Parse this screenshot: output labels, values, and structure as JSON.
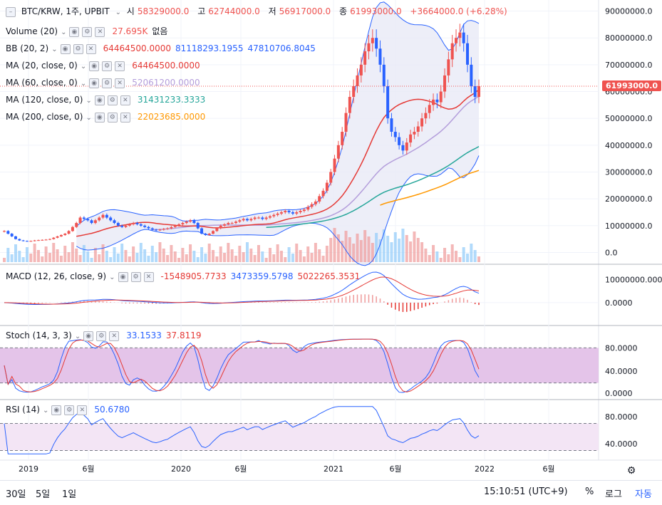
{
  "header": {
    "symbol": "BTC/KRW, 1주, UPBIT",
    "open_label": "시",
    "open": "58329000.0",
    "high_label": "고",
    "high": "62744000.0",
    "low_label": "저",
    "low": "56917000.0",
    "close_label": "종",
    "close": "61993000.0",
    "change": "+3664000.0 (+6.28%)"
  },
  "indicators": [
    {
      "name": "Volume (20)",
      "values": [
        "27.695K",
        "없음"
      ],
      "colors": [
        "#ef5350",
        "#131722"
      ]
    },
    {
      "name": "BB (20, 2)",
      "values": [
        "64464500.0000",
        "81118293.1955",
        "47810706.8045"
      ],
      "colors": [
        "#e53935",
        "#2962ff",
        "#2962ff"
      ]
    },
    {
      "name": "MA (20, close, 0)",
      "values": [
        "64464500.0000"
      ],
      "colors": [
        "#e53935"
      ]
    },
    {
      "name": "MA (60, close, 0)",
      "values": [
        "52061200.0000"
      ],
      "colors": [
        "#b39ddb"
      ]
    },
    {
      "name": "MA (120, close, 0)",
      "values": [
        "31431233.3333"
      ],
      "colors": [
        "#26a69a"
      ]
    },
    {
      "name": "MA (200, close, 0)",
      "values": [
        "22023685.0000"
      ],
      "colors": [
        "#ff9800"
      ]
    }
  ],
  "macd": {
    "name": "MACD (12, 26, close, 9)",
    "values": [
      "-1548905.7733",
      "3473359.5798",
      "5022265.3531"
    ],
    "colors": [
      "#e53935",
      "#2962ff",
      "#e53935"
    ]
  },
  "stoch": {
    "name": "Stoch (14, 3, 3)",
    "values": [
      "33.1533",
      "37.8119"
    ],
    "colors": [
      "#2962ff",
      "#e53935"
    ]
  },
  "rsi": {
    "name": "RSI (14)",
    "values": [
      "50.6780"
    ],
    "colors": [
      "#2962ff"
    ]
  },
  "price_badge": "61993000.0",
  "bottom": {
    "ranges": [
      "30일",
      "5일",
      "1일"
    ],
    "time": "15:10:51 (UTC+9)",
    "right": [
      "%",
      "로그",
      "자동"
    ]
  },
  "chart_data": {
    "type": "candlestick",
    "timeframe": "weekly",
    "price_axis_ticks": [
      "90000000.0",
      "80000000.0",
      "70000000.0",
      "60000000.0",
      "50000000.0",
      "40000000.0",
      "30000000.0",
      "20000000.0",
      "10000000.0",
      "0.0"
    ],
    "macd_axis_ticks": [
      "10000000.0000",
      "0.0000"
    ],
    "stoch_axis_ticks": [
      "80.0000",
      "40.0000",
      "0.0000"
    ],
    "rsi_axis_ticks": [
      "80.0000",
      "40.0000"
    ],
    "time_axis_ticks": [
      "2019",
      "6월",
      "2020",
      "6월",
      "2021",
      "6월",
      "2022",
      "6월"
    ],
    "ylim_price": [
      -2000000,
      92000000
    ],
    "close_series_millions": [
      8,
      7,
      6,
      5,
      4.5,
      4.3,
      4.2,
      4.3,
      4.5,
      4.6,
      4.7,
      4.8,
      5,
      5.5,
      6,
      6.5,
      7,
      8,
      9.5,
      11,
      13,
      12.5,
      12,
      11,
      12,
      13,
      14,
      13,
      12,
      11,
      10,
      9.5,
      10,
      10.5,
      11,
      10.5,
      10,
      9.5,
      9,
      8.5,
      8.3,
      8.5,
      8.8,
      9,
      9.5,
      10,
      10.5,
      11,
      11.5,
      12,
      11,
      9,
      7,
      6.5,
      7,
      8,
      9,
      10,
      10.5,
      11,
      11,
      11.5,
      12,
      12.5,
      12,
      12.5,
      13,
      13,
      12.5,
      13,
      13.5,
      14,
      14.5,
      15,
      15.5,
      15,
      14.5,
      15,
      15.5,
      16,
      17,
      18,
      19,
      21,
      23,
      26,
      30,
      35,
      40,
      45,
      52,
      58,
      62,
      66,
      70,
      75,
      78,
      80,
      76,
      70,
      62,
      50,
      45,
      43,
      40,
      38,
      41,
      44,
      45,
      47,
      50,
      52,
      55,
      57,
      56,
      60,
      66,
      72,
      78,
      80,
      82,
      78,
      70,
      62,
      58,
      62
    ],
    "volume_bars_axis_note": "volume shown as relative bars",
    "bb_upper_millions_end": 81.1,
    "bb_lower_millions_end": 47.8,
    "ma20_end_millions": 64.5,
    "ma60_end_millions": 52.1,
    "ma120_end_millions": 31.4,
    "ma200_end_millions": 22.0,
    "stoch_upper_band": 80,
    "stoch_lower_band": 20,
    "rsi_upper_band": 70,
    "rsi_lower_band": 30
  },
  "colors": {
    "up": "#ef5350",
    "down": "#2962ff",
    "bb_fill": "#e8eaf6",
    "stoch_fill": "#e1bee7",
    "rsi_fill": "#f3e5f5"
  }
}
